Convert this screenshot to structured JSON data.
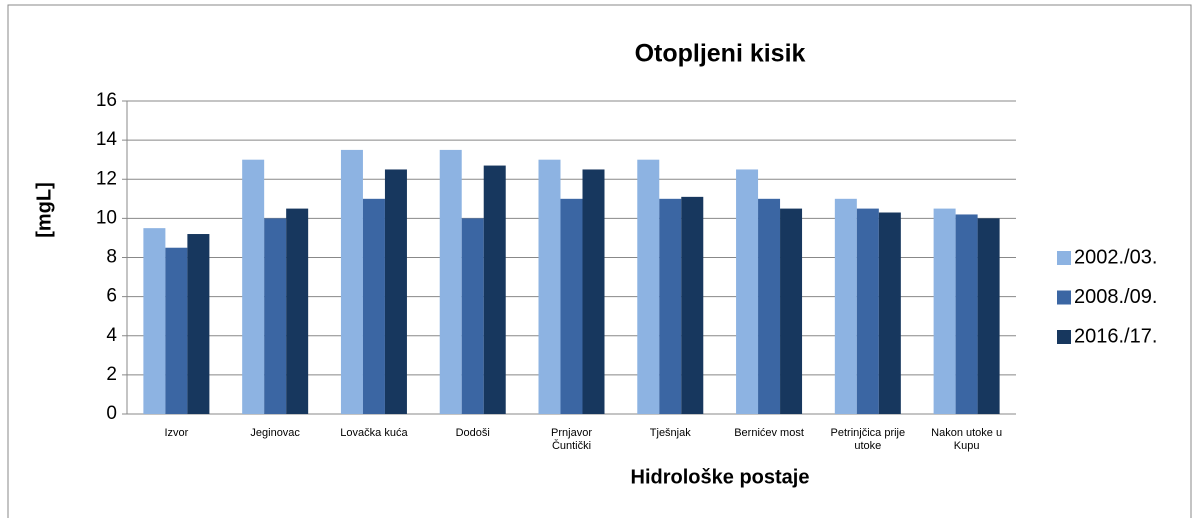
{
  "chart_data": {
    "type": "bar",
    "title": "Otopljeni kisik",
    "x_label": "Hidrološke postaje",
    "y_label": "[mgL]",
    "categories": [
      "Izvor",
      "Jeginovac",
      "Lovačka kuća",
      "Dodoši",
      "Prnjavor\nČuntički",
      "Tješnjak",
      "Bernićev most",
      "Petrinjčica prije\nutoke",
      "Nakon utoke u\nKupu"
    ],
    "series": [
      {
        "name": "2002./03.",
        "color": "#8db3e2",
        "values": [
          9.5,
          13,
          13.5,
          13.5,
          13,
          13,
          12.5,
          11,
          10.5
        ]
      },
      {
        "name": "2008./09.",
        "color": "#3b66a3",
        "values": [
          8.5,
          10,
          11,
          10,
          11,
          11,
          11,
          10.5,
          10.2
        ]
      },
      {
        "name": "2016./17.",
        "color": "#17375e",
        "values": [
          9.2,
          10.5,
          12.5,
          12.7,
          12.5,
          11.1,
          10.5,
          10.3,
          10
        ]
      }
    ],
    "ylim": [
      0,
      16
    ],
    "yticks": [
      0,
      2,
      4,
      6,
      8,
      10,
      12,
      14,
      16
    ],
    "grid": true,
    "legend": "right"
  }
}
